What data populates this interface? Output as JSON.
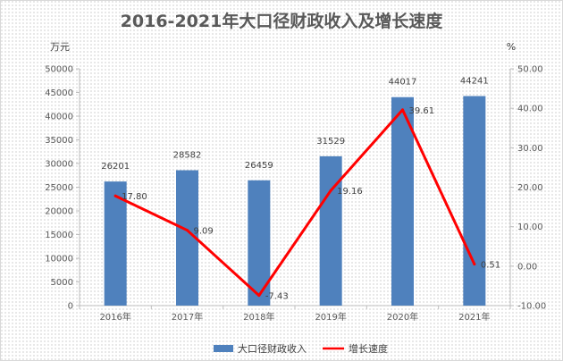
{
  "chart_data": {
    "type": "bar",
    "title": "2016-2021年大口径财政收入及增长速度",
    "categories": [
      "2016年",
      "2017年",
      "2018年",
      "2019年",
      "2020年",
      "2021年"
    ],
    "series": [
      {
        "name": "大口径财政收入",
        "type": "bar",
        "axis": "left",
        "color": "#4f81bd",
        "values": [
          26201,
          28582,
          26459,
          31529,
          44017,
          44241
        ]
      },
      {
        "name": "增长速度",
        "type": "line",
        "axis": "right",
        "color": "#ff0000",
        "values": [
          17.8,
          9.09,
          -7.43,
          19.16,
          39.61,
          0.51
        ],
        "labels": [
          "17.80",
          "9.09",
          "-7.43",
          "19.16",
          "39.61",
          "0.51"
        ]
      }
    ],
    "y_left": {
      "unit": "万元",
      "ylim": [
        0,
        50000
      ],
      "ticks": [
        "0",
        "5000",
        "10000",
        "15000",
        "20000",
        "25000",
        "30000",
        "35000",
        "40000",
        "45000",
        "50000"
      ]
    },
    "y_right": {
      "unit": "%",
      "ylim": [
        -10,
        50
      ],
      "ticks": [
        "-10.00",
        "0.00",
        "10.00",
        "20.00",
        "30.00",
        "40.00",
        "50.00"
      ]
    },
    "grid": false,
    "legend": "bottom"
  }
}
